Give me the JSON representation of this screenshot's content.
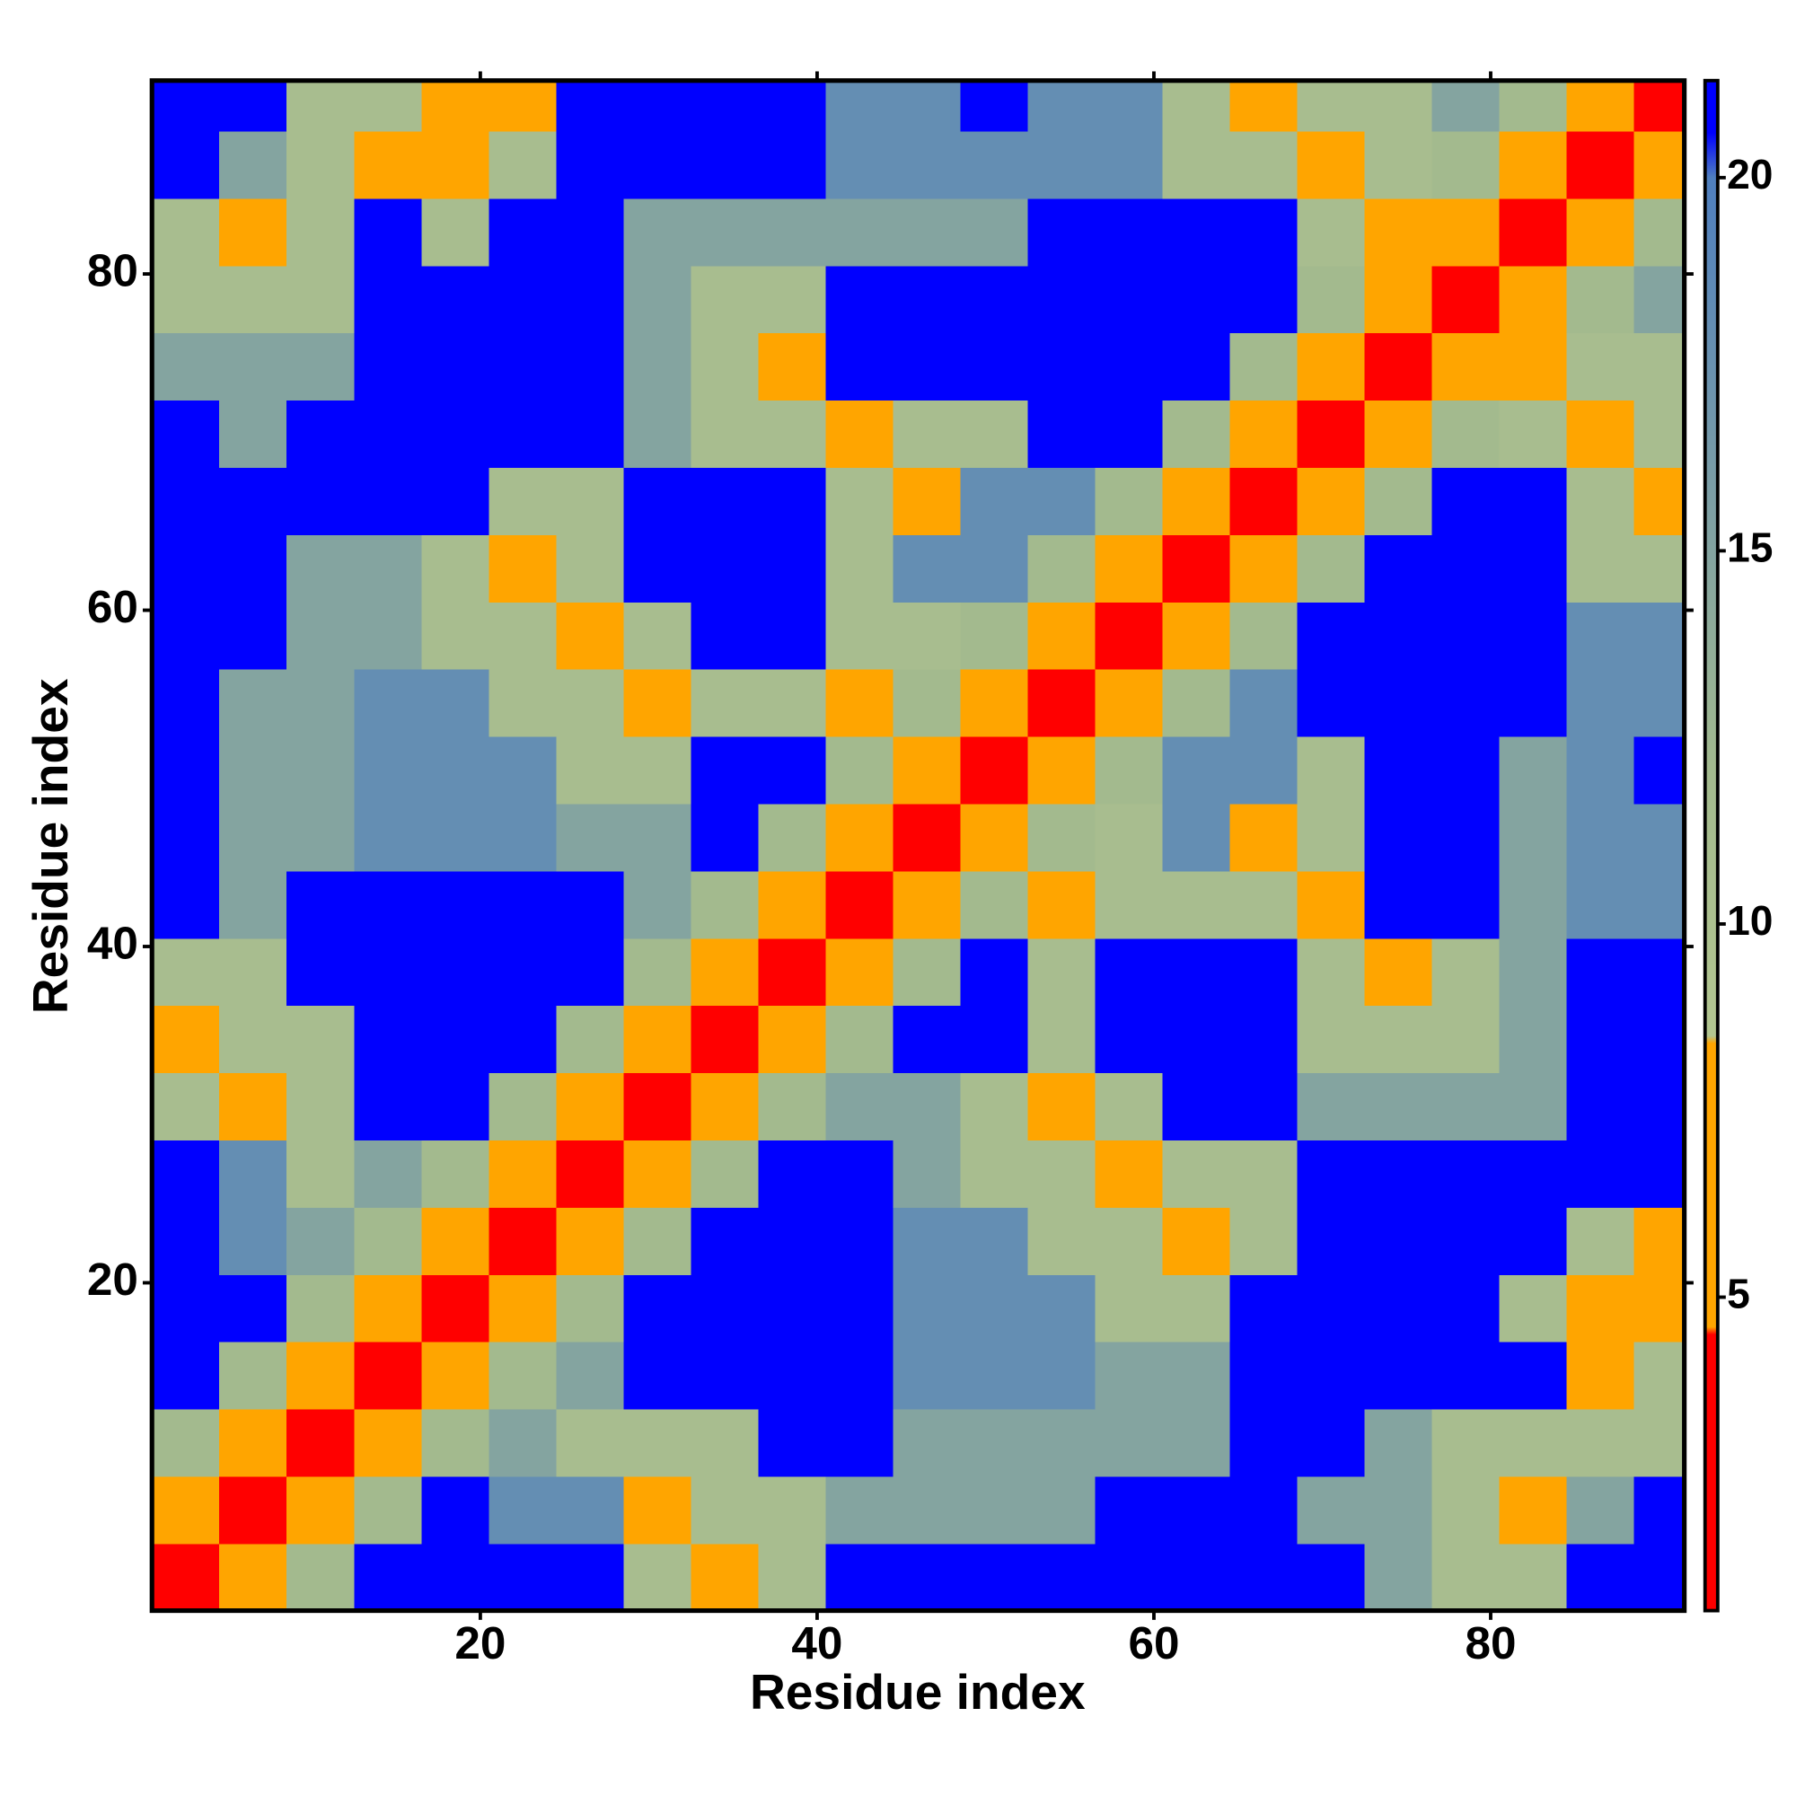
{
  "chart_data": {
    "type": "heatmap",
    "xlabel": "Residue index",
    "ylabel": "Residue index",
    "xlim": [
      0.5,
      91.5
    ],
    "ylim": [
      0.5,
      91.5
    ],
    "xticks": [
      20,
      40,
      60,
      80
    ],
    "yticks": [
      20,
      40,
      60,
      80
    ],
    "x_edges": [
      0.5,
      4.5,
      8.5,
      12.5,
      16.5,
      20.5,
      24.5,
      28.5,
      32.5,
      36.5,
      40.5,
      44.5,
      48.5,
      52.5,
      56.5,
      60.5,
      64.5,
      68.5,
      72.5,
      76.5,
      80.5,
      84.5,
      88.5,
      91.5
    ],
    "y_edges": [
      0.5,
      4.5,
      8.5,
      12.5,
      16.5,
      20.5,
      24.5,
      28.5,
      32.5,
      36.5,
      40.5,
      44.5,
      48.5,
      52.5,
      56.5,
      60.5,
      64.5,
      68.5,
      72.5,
      76.5,
      80.5,
      84.5,
      88.5,
      91.5
    ],
    "z": [
      [
        3,
        8,
        12,
        24,
        24,
        24,
        24,
        11,
        7,
        11,
        24,
        24,
        24,
        24,
        24,
        24,
        24,
        24,
        15,
        11,
        11,
        24,
        24
      ],
      [
        8,
        3,
        8,
        12,
        24,
        18,
        18,
        7,
        11,
        11,
        15,
        15,
        15,
        15,
        24,
        24,
        24,
        15,
        15,
        11,
        7,
        15,
        24
      ],
      [
        12,
        8,
        3,
        8,
        12,
        15,
        11,
        11,
        11,
        24,
        24,
        15,
        15,
        15,
        15,
        15,
        24,
        24,
        15,
        11,
        11,
        11,
        11
      ],
      [
        24,
        12,
        8,
        3,
        8,
        12,
        15,
        24,
        24,
        24,
        24,
        18,
        18,
        18,
        15,
        15,
        24,
        24,
        24,
        24,
        24,
        7,
        11
      ],
      [
        24,
        24,
        12,
        8,
        3,
        8,
        12,
        24,
        24,
        24,
        24,
        18,
        18,
        18,
        11,
        11,
        24,
        24,
        24,
        24,
        11,
        7,
        7
      ],
      [
        24,
        18,
        15,
        12,
        8,
        3,
        8,
        12,
        24,
        24,
        24,
        18,
        18,
        11,
        11,
        7,
        11,
        24,
        24,
        24,
        24,
        11,
        7
      ],
      [
        24,
        18,
        11,
        15,
        12,
        8,
        3,
        8,
        12,
        24,
        24,
        15,
        11,
        11,
        7,
        11,
        11,
        24,
        24,
        24,
        24,
        24,
        24
      ],
      [
        11,
        7,
        11,
        24,
        24,
        12,
        8,
        3,
        8,
        12,
        15,
        15,
        11,
        7,
        11,
        24,
        24,
        15,
        15,
        15,
        15,
        24,
        24
      ],
      [
        7,
        11,
        11,
        24,
        24,
        24,
        12,
        8,
        3,
        8,
        12,
        24,
        24,
        11,
        24,
        24,
        24,
        11,
        11,
        11,
        15,
        24,
        24
      ],
      [
        11,
        11,
        24,
        24,
        24,
        24,
        24,
        12,
        8,
        3,
        8,
        12,
        24,
        11,
        24,
        24,
        24,
        11,
        7,
        11,
        15,
        24,
        24
      ],
      [
        24,
        15,
        24,
        24,
        24,
        24,
        24,
        15,
        12,
        8,
        3,
        8,
        12,
        7,
        11,
        11,
        11,
        7,
        24,
        24,
        15,
        18,
        18
      ],
      [
        24,
        15,
        15,
        18,
        18,
        18,
        15,
        15,
        24,
        12,
        8,
        3,
        8,
        12,
        11,
        18,
        7,
        11,
        24,
        24,
        15,
        18,
        18
      ],
      [
        24,
        15,
        15,
        18,
        18,
        18,
        11,
        11,
        24,
        24,
        12,
        8,
        3,
        8,
        12,
        18,
        18,
        11,
        24,
        24,
        15,
        18,
        24
      ],
      [
        24,
        15,
        15,
        18,
        18,
        11,
        11,
        7,
        11,
        11,
        7,
        12,
        8,
        3,
        8,
        12,
        18,
        24,
        24,
        24,
        24,
        18,
        18
      ],
      [
        24,
        24,
        15,
        15,
        11,
        11,
        7,
        11,
        24,
        24,
        11,
        11,
        12,
        8,
        3,
        8,
        12,
        24,
        24,
        24,
        24,
        18,
        18
      ],
      [
        24,
        24,
        15,
        15,
        11,
        7,
        11,
        24,
        24,
        24,
        11,
        18,
        18,
        12,
        8,
        3,
        8,
        12,
        24,
        24,
        24,
        11,
        11
      ],
      [
        24,
        24,
        24,
        24,
        24,
        11,
        11,
        24,
        24,
        24,
        11,
        7,
        18,
        18,
        12,
        8,
        3,
        8,
        12,
        24,
        24,
        11,
        7
      ],
      [
        24,
        15,
        24,
        24,
        24,
        24,
        24,
        15,
        11,
        11,
        7,
        11,
        11,
        24,
        24,
        12,
        8,
        3,
        8,
        12,
        11,
        7,
        11
      ],
      [
        15,
        15,
        15,
        24,
        24,
        24,
        24,
        15,
        11,
        7,
        24,
        24,
        24,
        24,
        24,
        24,
        12,
        8,
        3,
        8,
        7,
        11,
        11
      ],
      [
        11,
        11,
        11,
        24,
        24,
        24,
        24,
        15,
        11,
        11,
        24,
        24,
        24,
        24,
        24,
        24,
        24,
        12,
        8,
        3,
        8,
        12,
        15
      ],
      [
        11,
        7,
        11,
        24,
        11,
        24,
        24,
        15,
        15,
        15,
        15,
        15,
        15,
        24,
        24,
        24,
        24,
        11,
        7,
        8,
        3,
        8,
        12
      ],
      [
        24,
        15,
        11,
        7,
        7,
        11,
        24,
        24,
        24,
        24,
        18,
        18,
        18,
        18,
        18,
        11,
        11,
        7,
        11,
        12,
        8,
        3,
        8
      ],
      [
        24,
        24,
        11,
        11,
        7,
        7,
        24,
        24,
        24,
        24,
        18,
        18,
        24,
        18,
        18,
        11,
        7,
        11,
        11,
        15,
        12,
        8,
        3
      ]
    ],
    "colorbar": {
      "lim": [
        0.8,
        21.3
      ],
      "ticks": [
        5,
        10,
        15,
        20
      ],
      "stops": [
        {
          "value": 0.8,
          "color": "#ff0000"
        },
        {
          "value": 4.5,
          "color": "#ff0000"
        },
        {
          "value": 4.6,
          "color": "#ffa500"
        },
        {
          "value": 8.4,
          "color": "#ffa500"
        },
        {
          "value": 8.5,
          "color": "#b3c690"
        },
        {
          "value": 12,
          "color": "#a3ba8e"
        },
        {
          "value": 20,
          "color": "#4f7fbf"
        },
        {
          "value": 20.6,
          "color": "#0000ff"
        },
        {
          "value": 21.3,
          "color": "#0000ff"
        }
      ]
    }
  }
}
